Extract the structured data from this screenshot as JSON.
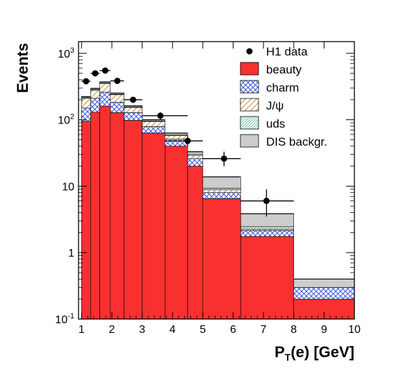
{
  "chart_data": {
    "type": "stacked-histogram",
    "ylabel": "Events",
    "xlabel_main": "P",
    "xlabel_sub": "T",
    "xlabel_rest": "(e) [GeV]",
    "yscale": "log",
    "xlim": [
      0.9,
      10
    ],
    "ylim": [
      0.1,
      1500
    ],
    "x_ticks": [
      "1",
      "2",
      "3",
      "4",
      "5",
      "6",
      "7",
      "8",
      "9",
      "10"
    ],
    "y_ticks": [
      {
        "value": 0.1,
        "base": "10",
        "exp": "-1"
      },
      {
        "value": 1,
        "base": "1",
        "exp": ""
      },
      {
        "value": 10,
        "base": "10",
        "exp": ""
      },
      {
        "value": 100,
        "base": "10",
        "exp": "2"
      },
      {
        "value": 1000,
        "base": "10",
        "exp": "3"
      }
    ],
    "bins": [
      [
        1.0,
        1.3
      ],
      [
        1.3,
        1.6
      ],
      [
        1.6,
        1.95
      ],
      [
        1.95,
        2.4
      ],
      [
        2.4,
        3.0
      ],
      [
        3.0,
        3.75
      ],
      [
        3.75,
        4.5
      ],
      [
        4.5,
        5.0
      ],
      [
        5.0,
        6.25
      ],
      [
        6.25,
        8.0
      ],
      [
        8.0,
        10.0
      ]
    ],
    "components": [
      {
        "name": "beauty",
        "color": "#f83030",
        "pattern": "solid",
        "values": [
          95,
          130,
          160,
          128,
          98,
          63,
          40,
          20,
          6.5,
          1.75,
          0.2
        ]
      },
      {
        "name": "charm",
        "color": "#3355dd",
        "pattern": "cross",
        "values": [
          55,
          80,
          100,
          55,
          30,
          16,
          11,
          6,
          1.5,
          0.4,
          0.1
        ]
      },
      {
        "name": "J/ψ",
        "color": "#cc8833",
        "pattern": "diag",
        "values": [
          60,
          70,
          90,
          55,
          25,
          15,
          7,
          3,
          0.8,
          0.1,
          0.0
        ]
      },
      {
        "name": "uds",
        "color": "#33aa88",
        "pattern": "finediag",
        "values": [
          5,
          5,
          7,
          4,
          3,
          2,
          1.5,
          1,
          0.5,
          0.2,
          0.0
        ]
      },
      {
        "name": "DIS backgr.",
        "color": "#cccccc",
        "pattern": "solid",
        "values": [
          8,
          12,
          15,
          10,
          6,
          4,
          3.5,
          3,
          4.5,
          1.4,
          0.1
        ]
      }
    ],
    "data_series": {
      "name": "H1 data",
      "points": [
        {
          "x": 1.15,
          "y": 380,
          "xerr": [
            1.0,
            1.3
          ],
          "yerr": [
            340,
            420
          ]
        },
        {
          "x": 1.45,
          "y": 500,
          "xerr": [
            1.3,
            1.6
          ],
          "yerr": [
            460,
            540
          ]
        },
        {
          "x": 1.78,
          "y": 550,
          "xerr": [
            1.6,
            1.95
          ],
          "yerr": [
            510,
            590
          ]
        },
        {
          "x": 2.18,
          "y": 385,
          "xerr": [
            1.95,
            2.4
          ],
          "yerr": [
            350,
            420
          ]
        },
        {
          "x": 2.7,
          "y": 200,
          "xerr": [
            2.4,
            3.0
          ],
          "yerr": [
            180,
            222
          ]
        },
        {
          "x": 3.6,
          "y": 115,
          "xerr": [
            3.0,
            4.5
          ],
          "yerr": [
            100,
            130
          ]
        },
        {
          "x": 4.5,
          "y": 48,
          "xerr": [
            3.75,
            5.0
          ],
          "yerr": [
            40,
            57
          ]
        },
        {
          "x": 5.7,
          "y": 26,
          "xerr": [
            5.0,
            6.25
          ],
          "yerr": [
            20,
            33
          ]
        },
        {
          "x": 7.1,
          "y": 6,
          "xerr": [
            6.25,
            8.0
          ],
          "yerr": [
            3.5,
            9
          ]
        }
      ]
    },
    "legend_position": "top-right"
  }
}
